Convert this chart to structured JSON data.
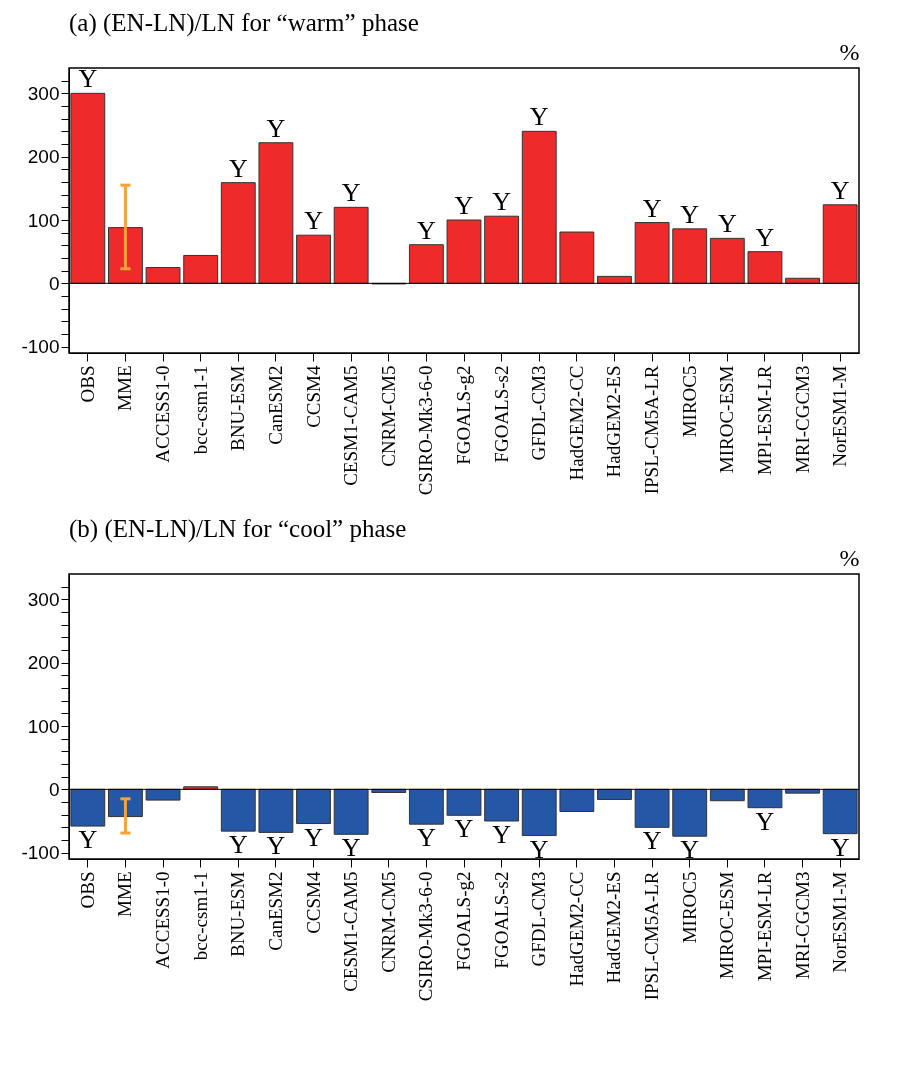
{
  "chart_data": [
    {
      "type": "bar",
      "title": "(a) (EN-LN)/LN for “warm” phase",
      "ylabel": "%",
      "categories": [
        "OBS",
        "MME",
        "ACCESS1-0",
        "bcc-csm1-1",
        "BNU-ESM",
        "CanESM2",
        "CCSM4",
        "CESM1-CAM5",
        "CNRM-CM5",
        "CSIRO-Mk3-6-0",
        "FGOALS-g2",
        "FGOALS-s2",
        "GFDL-CM3",
        "HadGEM2-CC",
        "HadGEM2-ES",
        "IPSL-CM5A-LR",
        "MIROC5",
        "MIROC-ESM",
        "MPI-ESM-LR",
        "MRI-CGCM3",
        "NorESM1-M"
      ],
      "values": [
        300,
        88,
        25,
        44,
        159,
        222,
        76,
        120,
        -1,
        61,
        100,
        106,
        240,
        81,
        11,
        96,
        86,
        71,
        50,
        8,
        124
      ],
      "colors": [
        "#ee2a2a",
        "#ee2a2a",
        "#ee2a2a",
        "#ee2a2a",
        "#ee2a2a",
        "#ee2a2a",
        "#ee2a2a",
        "#ee2a2a",
        "#ee2a2a",
        "#ee2a2a",
        "#ee2a2a",
        "#ee2a2a",
        "#ee2a2a",
        "#ee2a2a",
        "#ee2a2a",
        "#ee2a2a",
        "#ee2a2a",
        "#ee2a2a",
        "#ee2a2a",
        "#ee2a2a",
        "#ee2a2a"
      ],
      "errors": [
        null,
        [
          23,
          155
        ],
        null,
        null,
        null,
        null,
        null,
        null,
        null,
        null,
        null,
        null,
        null,
        null,
        null,
        null,
        null,
        null,
        null,
        null,
        null
      ],
      "ylim": [
        -110,
        340
      ],
      "yticks": [
        -100,
        {
          "value": -80,
          "label": null
        },
        {
          "value": -60,
          "label": null
        },
        {
          "value": -40,
          "label": null
        },
        {
          "value": -20,
          "label": null
        },
        0,
        {
          "value": 20,
          "label": null
        },
        {
          "value": 40,
          "label": null
        },
        {
          "value": 60,
          "label": null
        },
        {
          "value": 80,
          "label": null
        },
        100,
        {
          "value": 120,
          "label": null
        },
        {
          "value": 140,
          "label": null
        },
        {
          "value": 160,
          "label": null
        },
        {
          "value": 180,
          "label": null
        },
        200,
        {
          "value": 220,
          "label": null
        },
        {
          "value": 240,
          "label": null
        },
        {
          "value": 260,
          "label": null
        },
        {
          "value": 280,
          "label": null
        },
        300,
        {
          "value": 320,
          "label": null
        }
      ],
      "ref_lines": [
        {
          "axis": "y",
          "value": 0
        }
      ],
      "annotations": [
        {
          "text": "Y",
          "x": "OBS",
          "y": 300
        },
        {
          "text": "Y",
          "x": "BNU-ESM",
          "y": 159
        },
        {
          "text": "Y",
          "x": "CanESM2",
          "y": 222
        },
        {
          "text": "Y",
          "x": "CCSM4",
          "y": 76
        },
        {
          "text": "Y",
          "x": "CESM1-CAM5",
          "y": 120
        },
        {
          "text": "Y",
          "x": "CSIRO-Mk3-6-0",
          "y": 61
        },
        {
          "text": "Y",
          "x": "FGOALS-g2",
          "y": 100
        },
        {
          "text": "Y",
          "x": "FGOALS-s2",
          "y": 106
        },
        {
          "text": "Y",
          "x": "GFDL-CM3",
          "y": 240
        },
        {
          "text": "Y",
          "x": "IPSL-CM5A-LR",
          "y": 96
        },
        {
          "text": "Y",
          "x": "MIROC5",
          "y": 86
        },
        {
          "text": "Y",
          "x": "MIROC-ESM",
          "y": 71
        },
        {
          "text": "Y",
          "x": "MPI-ESM-LR",
          "y": 50
        },
        {
          "text": "Y",
          "x": "NorESM1-M",
          "y": 124
        }
      ]
    },
    {
      "type": "bar",
      "title": "(b) (EN-LN)/LN for “cool” phase",
      "ylabel": "%",
      "categories": [
        "OBS",
        "MME",
        "ACCESS1-0",
        "bcc-csm1-1",
        "BNU-ESM",
        "CanESM2",
        "CCSM4",
        "CESM1-CAM5",
        "CNRM-CM5",
        "CSIRO-Mk3-6-0",
        "FGOALS-g2",
        "FGOALS-s2",
        "GFDL-CM3",
        "HadGEM2-CC",
        "HadGEM2-ES",
        "IPSL-CM5A-LR",
        "MIROC5",
        "MIROC-ESM",
        "MPI-ESM-LR",
        "MRI-CGCM3",
        "NorESM1-M"
      ],
      "values": [
        -58,
        -43,
        -17,
        4,
        -66,
        -68,
        -54,
        -71,
        -5,
        -55,
        -41,
        -50,
        -73,
        -35,
        -16,
        -60,
        -74,
        -18,
        -29,
        -6,
        -70
      ],
      "colors": [
        "#2457a5",
        "#2457a5",
        "#2457a5",
        "#ee2a2a",
        "#2457a5",
        "#2457a5",
        "#2457a5",
        "#2457a5",
        "#2457a5",
        "#2457a5",
        "#2457a5",
        "#2457a5",
        "#2457a5",
        "#2457a5",
        "#2457a5",
        "#2457a5",
        "#2457a5",
        "#2457a5",
        "#2457a5",
        "#2457a5",
        "#2457a5"
      ],
      "errors": [
        null,
        [
          -69,
          -15
        ],
        null,
        null,
        null,
        null,
        null,
        null,
        null,
        null,
        null,
        null,
        null,
        null,
        null,
        null,
        null,
        null,
        null,
        null,
        null
      ],
      "ylim": [
        -110,
        340
      ],
      "yticks": [
        -100,
        {
          "value": -80,
          "label": null
        },
        {
          "value": -60,
          "label": null
        },
        {
          "value": -40,
          "label": null
        },
        {
          "value": -20,
          "label": null
        },
        0,
        {
          "value": 20,
          "label": null
        },
        {
          "value": 40,
          "label": null
        },
        {
          "value": 60,
          "label": null
        },
        {
          "value": 80,
          "label": null
        },
        100,
        {
          "value": 120,
          "label": null
        },
        {
          "value": 140,
          "label": null
        },
        {
          "value": 160,
          "label": null
        },
        {
          "value": 180,
          "label": null
        },
        200,
        {
          "value": 220,
          "label": null
        },
        {
          "value": 240,
          "label": null
        },
        {
          "value": 260,
          "label": null
        },
        {
          "value": 280,
          "label": null
        },
        300,
        {
          "value": 320,
          "label": null
        }
      ],
      "ref_lines": [
        {
          "axis": "y",
          "value": 0
        }
      ],
      "annotations": [
        {
          "text": "Y",
          "x": "OBS",
          "y": -58
        },
        {
          "text": "Y",
          "x": "BNU-ESM",
          "y": -66
        },
        {
          "text": "Y",
          "x": "CanESM2",
          "y": -68
        },
        {
          "text": "Y",
          "x": "CCSM4",
          "y": -54
        },
        {
          "text": "Y",
          "x": "CESM1-CAM5",
          "y": -71
        },
        {
          "text": "Y",
          "x": "CSIRO-Mk3-6-0",
          "y": -55
        },
        {
          "text": "Y",
          "x": "FGOALS-g2",
          "y": -41
        },
        {
          "text": "Y",
          "x": "FGOALS-s2",
          "y": -50
        },
        {
          "text": "Y",
          "x": "GFDL-CM3",
          "y": -73
        },
        {
          "text": "Y",
          "x": "IPSL-CM5A-LR",
          "y": -60
        },
        {
          "text": "Y",
          "x": "MIROC5",
          "y": -74
        },
        {
          "text": "Y",
          "x": "MPI-ESM-LR",
          "y": -29
        },
        {
          "text": "Y",
          "x": "NorESM1-M",
          "y": -70
        }
      ]
    }
  ]
}
